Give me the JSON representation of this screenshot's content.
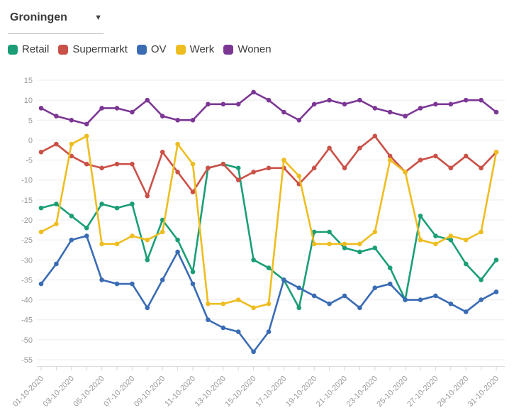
{
  "dropdown": {
    "value": "Groningen"
  },
  "legend": {
    "items": [
      {
        "label": "Retail",
        "color": "#1b9e77"
      },
      {
        "label": "Supermarkt",
        "color": "#ca5148"
      },
      {
        "label": "OV",
        "color": "#3a6cb4"
      },
      {
        "label": "Werk",
        "color": "#eebd20"
      },
      {
        "label": "Wonen",
        "color": "#7c3795"
      }
    ]
  },
  "chart_data": {
    "type": "line",
    "x": [
      "01-10-2020",
      "02-10-2020",
      "03-10-2020",
      "04-10-2020",
      "05-10-2020",
      "06-10-2020",
      "07-10-2020",
      "08-10-2020",
      "09-10-2020",
      "10-10-2020",
      "11-10-2020",
      "12-10-2020",
      "13-10-2020",
      "14-10-2020",
      "15-10-2020",
      "16-10-2020",
      "17-10-2020",
      "18-10-2020",
      "19-10-2020",
      "20-10-2020",
      "21-10-2020",
      "22-10-2020",
      "23-10-2020",
      "24-10-2020",
      "25-10-2020",
      "26-10-2020",
      "27-10-2020",
      "28-10-2020",
      "29-10-2020",
      "30-10-2020",
      "31-10-2020"
    ],
    "x_tick_labels_shown": [
      "01-10-2020",
      "03-10-2020",
      "05-10-2020",
      "07-10-2020",
      "09-10-2020",
      "11-10-2020",
      "13-10-2020",
      "15-10-2020",
      "17-10-2020",
      "19-10-2020",
      "21-10-2020",
      "23-10-2020",
      "25-10-2020",
      "27-10-2020",
      "29-10-2020",
      "31-10-2020"
    ],
    "x_label_rotation": -45,
    "ylim": [
      -55,
      15
    ],
    "ytick_step": 5,
    "y_tick_labels": [
      15,
      10,
      5,
      0,
      -5,
      -10,
      -15,
      -20,
      -25,
      -30,
      -35,
      -40,
      -45,
      -50,
      -55
    ],
    "grid": true,
    "legend_position": "top-left",
    "series": [
      {
        "name": "Retail",
        "color": "#1b9e77",
        "values": [
          -17,
          -16,
          -19,
          -22,
          -16,
          -17,
          -16,
          -30,
          -20,
          -25,
          -33,
          -7,
          -6,
          -7,
          -30,
          -32,
          -35,
          -42,
          -23,
          -23,
          -27,
          -28,
          -27,
          -32,
          -40,
          -19,
          -24,
          -25,
          -31,
          -35,
          -30
        ]
      },
      {
        "name": "Supermarkt",
        "color": "#ca5148",
        "values": [
          -3,
          -1,
          -4,
          -6,
          -7,
          -6,
          -6,
          -14,
          -3,
          -8,
          -13,
          -7,
          -6,
          -10,
          -8,
          -7,
          -7,
          -11,
          -7,
          -2,
          -7,
          -2,
          1,
          -4,
          -8,
          -5,
          -4,
          -7,
          -4,
          -7,
          -3
        ]
      },
      {
        "name": "OV",
        "color": "#3a6cb4",
        "values": [
          -36,
          -31,
          -25,
          -24,
          -35,
          -36,
          -36,
          -42,
          -35,
          -28,
          -36,
          -45,
          -47,
          -48,
          -53,
          -48,
          -35,
          -37,
          -39,
          -41,
          -39,
          -42,
          -37,
          -36,
          -40,
          -40,
          -39,
          -41,
          -43,
          -40,
          -38
        ]
      },
      {
        "name": "Werk",
        "color": "#eebd20",
        "values": [
          -23,
          -21,
          -1,
          1,
          -26,
          -26,
          -24,
          -25,
          -23,
          -1,
          -6,
          -41,
          -41,
          -40,
          -42,
          -41,
          -5,
          -9,
          -26,
          -26,
          -26,
          -26,
          -23,
          -5,
          -8,
          -25,
          -26,
          -24,
          -25,
          -23,
          -3
        ]
      },
      {
        "name": "Wonen",
        "color": "#7c3795",
        "values": [
          8,
          6,
          5,
          4,
          8,
          8,
          7,
          10,
          6,
          5,
          5,
          9,
          9,
          9,
          12,
          10,
          7,
          5,
          9,
          10,
          9,
          10,
          8,
          7,
          6,
          8,
          9,
          9,
          10,
          10,
          7
        ]
      }
    ]
  }
}
